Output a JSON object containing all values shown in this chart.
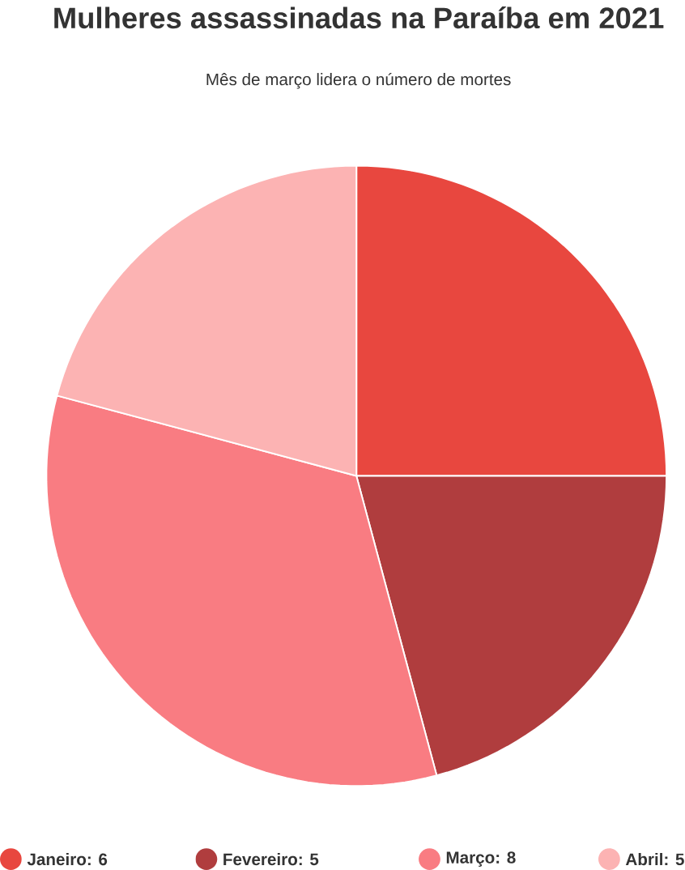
{
  "chart_data": {
    "type": "pie",
    "title": "Mulheres assassinadas na Paraíba em 2021",
    "subtitle": "Mês de março lidera o número de mortes",
    "categories": [
      "Janeiro: 6",
      "Fevereiro: 5",
      "Março: 8",
      "Abril: 5"
    ],
    "values": [
      6,
      5,
      8,
      5
    ],
    "colors": [
      "#e8473f",
      "#b03d3e",
      "#f97c82",
      "#fcb3b3"
    ],
    "legend": "bottom"
  }
}
